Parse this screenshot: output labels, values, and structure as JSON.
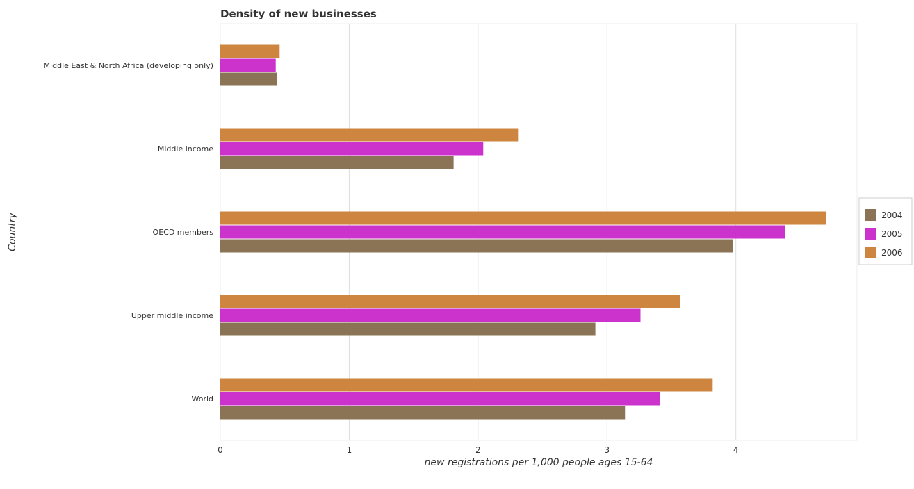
{
  "chart_data": {
    "type": "bar",
    "orientation": "horizontal",
    "title": "Density of new businesses",
    "xlabel": "new registrations per 1,000 people ages 15-64",
    "ylabel": "Country",
    "categories": [
      "Middle East & North Africa (developing only)",
      "Middle income",
      "OECD members",
      "Upper middle income",
      "World"
    ],
    "series": [
      {
        "name": "2004",
        "color": "#8b7355",
        "values": [
          0.44,
          1.81,
          3.98,
          2.91,
          3.14
        ]
      },
      {
        "name": "2005",
        "color": "#cc33cc",
        "values": [
          0.43,
          2.04,
          4.38,
          3.26,
          3.41
        ]
      },
      {
        "name": "2006",
        "color": "#cd853f",
        "values": [
          0.46,
          2.31,
          4.7,
          3.57,
          3.82
        ]
      }
    ],
    "xlim": [
      0,
      4.94
    ],
    "xticks": [
      {
        "value": 0,
        "label": "0"
      },
      {
        "value": 1,
        "label": "1"
      },
      {
        "value": 2,
        "label": "2"
      },
      {
        "value": 3,
        "label": "3"
      },
      {
        "value": 4,
        "label": "4"
      }
    ],
    "grid": true,
    "legend_position": "right"
  }
}
